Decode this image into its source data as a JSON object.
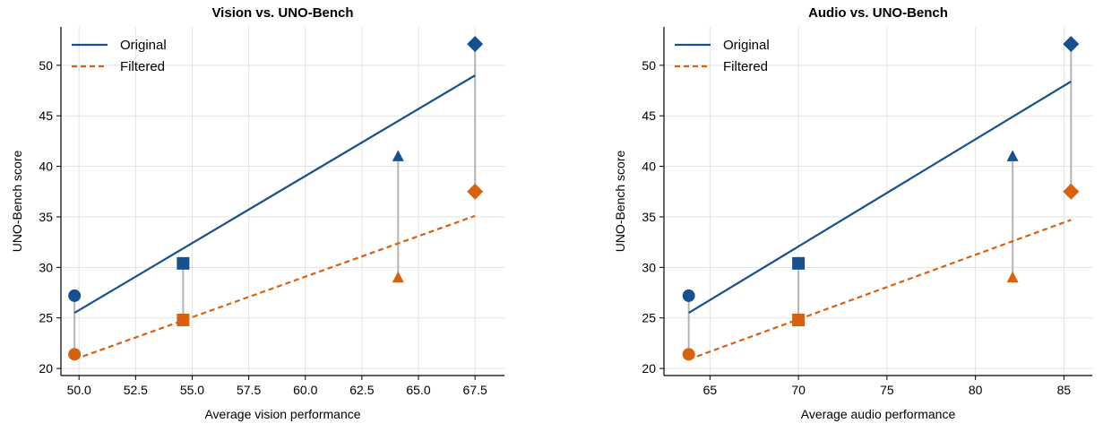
{
  "colors": {
    "original": "#17508e",
    "filtered": "#d9600f",
    "connector": "#b5b5b5",
    "grid": "#e3e3e3"
  },
  "chart_data": [
    {
      "type": "scatter",
      "title": "Vision vs. UNO-Bench",
      "xlabel": "Average vision performance",
      "ylabel": "UNO-Bench score",
      "xlim": [
        49.2,
        68.8
      ],
      "ylim": [
        19.3,
        53.8
      ],
      "xticks": [
        50.0,
        52.5,
        55.0,
        57.5,
        60.0,
        62.5,
        65.0,
        67.5
      ],
      "xtick_labels": [
        "50.0",
        "52.5",
        "55.0",
        "57.5",
        "60.0",
        "62.5",
        "65.0",
        "67.5"
      ],
      "yticks": [
        20,
        25,
        30,
        35,
        40,
        45,
        50
      ],
      "ytick_labels": [
        "20",
        "25",
        "30",
        "35",
        "40",
        "45",
        "50"
      ],
      "grid": true,
      "legend_position": "top-left",
      "legend": [
        "Original",
        "Filtered"
      ],
      "points": [
        {
          "marker": "circle",
          "x": 49.8,
          "original": 27.2,
          "filtered": 21.4
        },
        {
          "marker": "square",
          "x": 54.6,
          "original": 30.4,
          "filtered": 24.8
        },
        {
          "marker": "triangle",
          "x": 64.1,
          "original": 41.0,
          "filtered": 29.0
        },
        {
          "marker": "diamond",
          "x": 67.5,
          "original": 52.1,
          "filtered": 37.5
        }
      ],
      "fit_lines": {
        "original": {
          "x": [
            49.8,
            67.5
          ],
          "y": [
            25.5,
            49.0
          ]
        },
        "filtered": {
          "x": [
            49.8,
            67.5
          ],
          "y": [
            20.9,
            35.1
          ]
        }
      }
    },
    {
      "type": "scatter",
      "title": "Audio vs. UNO-Bench",
      "xlabel": "Average audio performance",
      "ylabel": "UNO-Bench score",
      "xlim": [
        62.4,
        86.6
      ],
      "ylim": [
        19.3,
        53.8
      ],
      "xticks": [
        65,
        70,
        75,
        80,
        85
      ],
      "xtick_labels": [
        "65",
        "70",
        "75",
        "80",
        "85"
      ],
      "yticks": [
        20,
        25,
        30,
        35,
        40,
        45,
        50
      ],
      "ytick_labels": [
        "20",
        "25",
        "30",
        "35",
        "40",
        "45",
        "50"
      ],
      "grid": true,
      "legend_position": "top-left",
      "legend": [
        "Original",
        "Filtered"
      ],
      "points": [
        {
          "marker": "circle",
          "x": 63.8,
          "original": 27.2,
          "filtered": 21.4
        },
        {
          "marker": "square",
          "x": 70.0,
          "original": 30.4,
          "filtered": 24.8
        },
        {
          "marker": "triangle",
          "x": 82.1,
          "original": 41.0,
          "filtered": 29.0
        },
        {
          "marker": "diamond",
          "x": 85.4,
          "original": 52.1,
          "filtered": 37.5
        }
      ],
      "fit_lines": {
        "original": {
          "x": [
            63.8,
            85.4
          ],
          "y": [
            25.5,
            48.4
          ]
        },
        "filtered": {
          "x": [
            63.8,
            85.4
          ],
          "y": [
            20.9,
            34.7
          ]
        }
      }
    }
  ]
}
